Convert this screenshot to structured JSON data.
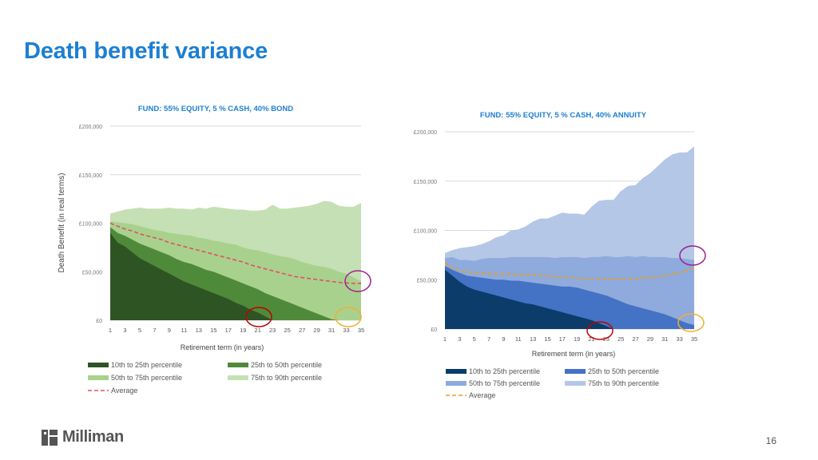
{
  "page": {
    "title": "Death benefit variance",
    "page_number": "16",
    "logo_text": "Milliman"
  },
  "colors": {
    "title": "#1d7fd1",
    "left_p10_25": "#2f5424",
    "left_p25_50": "#4f8a3a",
    "left_p50_75": "#a9d18e",
    "left_p75_90": "#c5e0b4",
    "left_avg": "#e05060",
    "right_p10_25": "#0b3c6a",
    "right_p25_50": "#4472c4",
    "right_p50_75": "#8faadc",
    "right_p75_90": "#b4c7e7",
    "right_avg": "#e6a020",
    "circle_red": "#c00000",
    "circle_purple": "#a0208f",
    "circle_orange": "#f0b030"
  },
  "chart_data": [
    {
      "type": "area",
      "title": "FUND: 55% EQUITY, 5 % CASH, 40% BOND",
      "xlabel": "Retirement term (in years)",
      "ylabel": "Death Benefit (in real terms)",
      "y_ticks": [
        "£0",
        "£50,000",
        "£100,000",
        "£150,000",
        "£200,000"
      ],
      "x_ticks": [
        "1",
        "3",
        "5",
        "7",
        "9",
        "11",
        "13",
        "15",
        "17",
        "19",
        "21",
        "23",
        "25",
        "27",
        "29",
        "31",
        "33",
        "35"
      ],
      "ylim": [
        0,
        200000
      ],
      "x": [
        1,
        2,
        3,
        4,
        5,
        6,
        7,
        8,
        9,
        10,
        11,
        12,
        13,
        14,
        15,
        16,
        17,
        18,
        19,
        20,
        21,
        22,
        23,
        24,
        25,
        26,
        27,
        28,
        29,
        30,
        31,
        32,
        33,
        34,
        35
      ],
      "legend_placement": "bottom",
      "series": [
        {
          "name": "10th to 25th percentile",
          "values": [
            90000,
            80000,
            76000,
            70000,
            64000,
            60000,
            56000,
            52000,
            48000,
            44000,
            40000,
            37000,
            34000,
            31000,
            28000,
            25000,
            22000,
            18000,
            15000,
            11000,
            8000,
            4000,
            0,
            0,
            0,
            0,
            0,
            0,
            0,
            0,
            0,
            0,
            0,
            0,
            0
          ]
        },
        {
          "name": "25th to 50th percentile",
          "values": [
            96000,
            90000,
            87000,
            83000,
            79000,
            76000,
            73000,
            70000,
            67000,
            63000,
            60000,
            58000,
            55000,
            52000,
            50000,
            47000,
            44000,
            41000,
            38000,
            35000,
            32000,
            28000,
            25000,
            22000,
            19000,
            16000,
            13000,
            10000,
            7000,
            4000,
            1000,
            0,
            0,
            0,
            0
          ]
        },
        {
          "name": "50th to 75th percentile",
          "values": [
            102000,
            101000,
            100000,
            99000,
            97000,
            95000,
            93000,
            92000,
            90000,
            89000,
            88000,
            87000,
            85000,
            84000,
            82000,
            81000,
            79000,
            78000,
            75000,
            73000,
            72000,
            70000,
            68000,
            66000,
            65000,
            63000,
            60000,
            58000,
            56000,
            55000,
            53000,
            50000,
            48000,
            44000,
            40000
          ]
        },
        {
          "name": "75th to 90th percentile",
          "values": [
            110000,
            112000,
            114000,
            115000,
            116000,
            115000,
            115000,
            115000,
            116000,
            115000,
            115000,
            114000,
            116000,
            115000,
            117000,
            116000,
            115000,
            114000,
            114000,
            113000,
            113000,
            114000,
            119000,
            115000,
            115000,
            116000,
            117000,
            118000,
            120000,
            123000,
            122000,
            118000,
            117000,
            117000,
            121000
          ]
        },
        {
          "name": "Average",
          "values": [
            100000,
            97000,
            94000,
            92000,
            89000,
            87000,
            85000,
            83000,
            80000,
            78000,
            76000,
            74000,
            72000,
            70000,
            68000,
            66000,
            64000,
            62000,
            60000,
            57000,
            55000,
            53000,
            51000,
            49000,
            47000,
            45000,
            44000,
            43000,
            42000,
            41000,
            40000,
            39000,
            38500,
            38000,
            38000
          ]
        }
      ]
    },
    {
      "type": "area",
      "title": "FUND: 55% EQUITY, 5 % CASH, 40% ANNUITY",
      "xlabel": "Retirement term (in years)",
      "ylabel": "",
      "y_ticks": [
        "£0",
        "£50,000",
        "£100,000",
        "£150,000",
        "£200,000"
      ],
      "x_ticks": [
        "1",
        "3",
        "5",
        "7",
        "9",
        "11",
        "13",
        "15",
        "17",
        "19",
        "21",
        "23",
        "25",
        "27",
        "29",
        "31",
        "33",
        "35"
      ],
      "ylim": [
        0,
        200000
      ],
      "x": [
        1,
        2,
        3,
        4,
        5,
        6,
        7,
        8,
        9,
        10,
        11,
        12,
        13,
        14,
        15,
        16,
        17,
        18,
        19,
        20,
        21,
        22,
        23,
        24,
        25,
        26,
        27,
        28,
        29,
        30,
        31,
        32,
        33,
        34,
        35
      ],
      "legend_placement": "bottom",
      "series": [
        {
          "name": "10th to 25th percentile",
          "values": [
            60000,
            54000,
            48000,
            43000,
            40000,
            38000,
            36000,
            34000,
            32000,
            30000,
            28000,
            26000,
            25000,
            23000,
            21000,
            19000,
            17000,
            15000,
            13000,
            11000,
            9000,
            6000,
            3000,
            0,
            0,
            0,
            0,
            0,
            0,
            0,
            0,
            0,
            0,
            0,
            0
          ]
        },
        {
          "name": "25th to 50th percentile",
          "values": [
            64000,
            60000,
            57000,
            54000,
            53000,
            52000,
            51000,
            50000,
            50000,
            49000,
            49000,
            48000,
            47000,
            46000,
            45000,
            44000,
            43000,
            43000,
            42000,
            40000,
            38000,
            36000,
            34000,
            31000,
            28000,
            25000,
            23000,
            21000,
            19000,
            17000,
            15000,
            12000,
            9000,
            6000,
            4000
          ]
        },
        {
          "name": "50th to 75th percentile",
          "values": [
            72000,
            73000,
            70000,
            70000,
            69000,
            71000,
            72000,
            72000,
            72000,
            73000,
            73000,
            73000,
            73000,
            73000,
            73000,
            72000,
            73000,
            73000,
            73000,
            72000,
            73000,
            73000,
            74000,
            73000,
            73000,
            74000,
            73000,
            74000,
            73000,
            73000,
            73000,
            72000,
            72000,
            71000,
            70000
          ]
        },
        {
          "name": "75th to 90th percentile",
          "values": [
            77000,
            80000,
            82000,
            83000,
            84000,
            86000,
            89000,
            93000,
            95000,
            100000,
            101000,
            104000,
            109000,
            112000,
            112000,
            115000,
            118000,
            117000,
            117000,
            116000,
            124000,
            130000,
            131000,
            131000,
            140000,
            145000,
            146000,
            153000,
            158000,
            165000,
            172000,
            177000,
            179000,
            179000,
            185000
          ]
        },
        {
          "name": "Average",
          "values": [
            67000,
            62000,
            59000,
            58000,
            57000,
            57000,
            56000,
            56000,
            56000,
            56000,
            55000,
            55000,
            55000,
            54000,
            54000,
            53000,
            53000,
            52000,
            52000,
            51000,
            51000,
            51000,
            51000,
            51000,
            51000,
            51000,
            51000,
            52000,
            52000,
            53000,
            54000,
            56000,
            57000,
            59000,
            62000
          ]
        }
      ]
    }
  ]
}
